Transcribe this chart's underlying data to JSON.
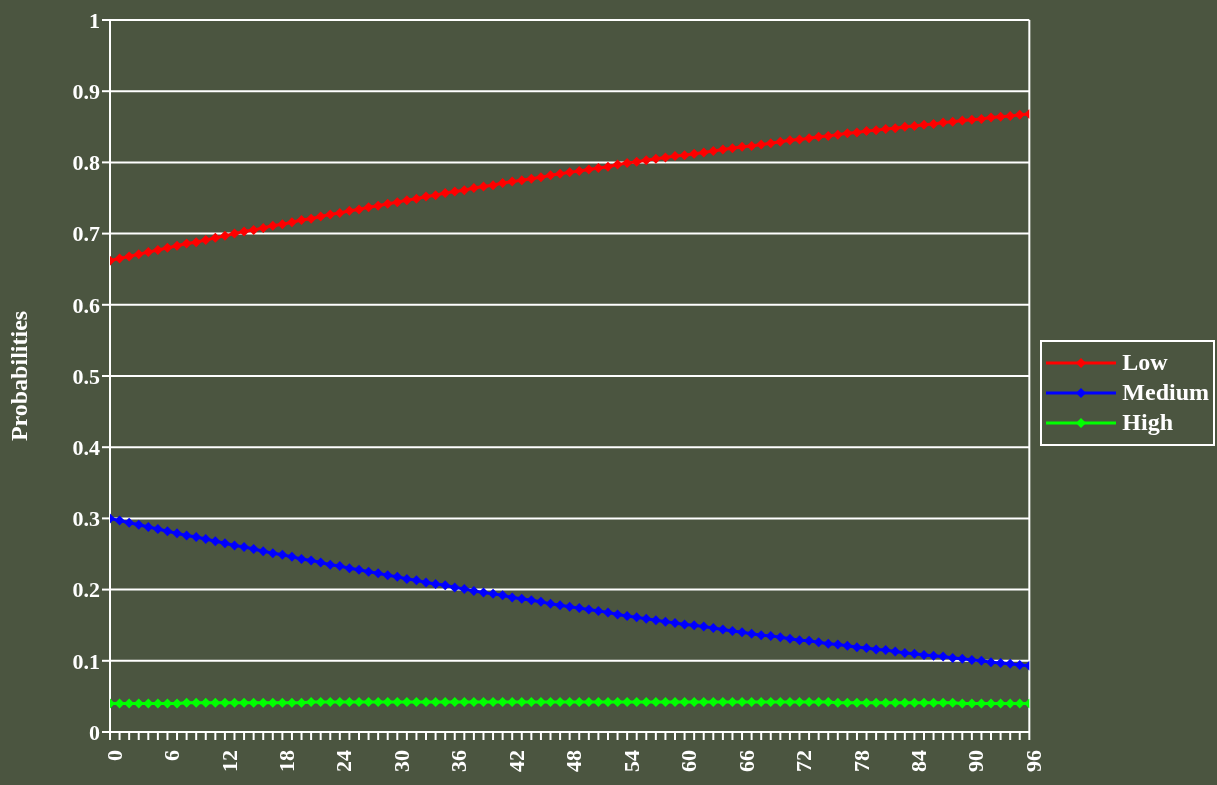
{
  "chart_data": {
    "type": "line",
    "ylabel": "Probabilities",
    "x": [
      0,
      1,
      2,
      3,
      4,
      5,
      6,
      7,
      8,
      9,
      10,
      11,
      12,
      13,
      14,
      15,
      16,
      17,
      18,
      19,
      20,
      21,
      22,
      23,
      24,
      25,
      26,
      27,
      28,
      29,
      30,
      31,
      32,
      33,
      34,
      35,
      36,
      37,
      38,
      39,
      40,
      41,
      42,
      43,
      44,
      45,
      46,
      47,
      48,
      49,
      50,
      51,
      52,
      53,
      54,
      55,
      56,
      57,
      58,
      59,
      60,
      61,
      62,
      63,
      64,
      65,
      66,
      67,
      68,
      69,
      70,
      71,
      72,
      73,
      74,
      75,
      76,
      77,
      78,
      79,
      80,
      81,
      82,
      83,
      84,
      85,
      86,
      87,
      88,
      89,
      90,
      91,
      92,
      93,
      94,
      95,
      96
    ],
    "xlim": [
      0,
      96
    ],
    "xticks": [
      0,
      {
        "value": 1,
        "label": null
      },
      {
        "value": 2,
        "label": null
      },
      {
        "value": 3,
        "label": null
      },
      {
        "value": 4,
        "label": null
      },
      {
        "value": 5,
        "label": null
      },
      6,
      {
        "value": 7,
        "label": null
      },
      {
        "value": 8,
        "label": null
      },
      {
        "value": 9,
        "label": null
      },
      {
        "value": 10,
        "label": null
      },
      {
        "value": 11,
        "label": null
      },
      12,
      {
        "value": 13,
        "label": null
      },
      {
        "value": 14,
        "label": null
      },
      {
        "value": 15,
        "label": null
      },
      {
        "value": 16,
        "label": null
      },
      {
        "value": 17,
        "label": null
      },
      18,
      {
        "value": 19,
        "label": null
      },
      {
        "value": 20,
        "label": null
      },
      {
        "value": 21,
        "label": null
      },
      {
        "value": 22,
        "label": null
      },
      {
        "value": 23,
        "label": null
      },
      24,
      {
        "value": 25,
        "label": null
      },
      {
        "value": 26,
        "label": null
      },
      {
        "value": 27,
        "label": null
      },
      {
        "value": 28,
        "label": null
      },
      {
        "value": 29,
        "label": null
      },
      30,
      {
        "value": 31,
        "label": null
      },
      {
        "value": 32,
        "label": null
      },
      {
        "value": 33,
        "label": null
      },
      {
        "value": 34,
        "label": null
      },
      {
        "value": 35,
        "label": null
      },
      36,
      {
        "value": 37,
        "label": null
      },
      {
        "value": 38,
        "label": null
      },
      {
        "value": 39,
        "label": null
      },
      {
        "value": 40,
        "label": null
      },
      {
        "value": 41,
        "label": null
      },
      42,
      {
        "value": 43,
        "label": null
      },
      {
        "value": 44,
        "label": null
      },
      {
        "value": 45,
        "label": null
      },
      {
        "value": 46,
        "label": null
      },
      {
        "value": 47,
        "label": null
      },
      48,
      {
        "value": 49,
        "label": null
      },
      {
        "value": 50,
        "label": null
      },
      {
        "value": 51,
        "label": null
      },
      {
        "value": 52,
        "label": null
      },
      {
        "value": 53,
        "label": null
      },
      54,
      {
        "value": 55,
        "label": null
      },
      {
        "value": 56,
        "label": null
      },
      {
        "value": 57,
        "label": null
      },
      {
        "value": 58,
        "label": null
      },
      {
        "value": 59,
        "label": null
      },
      60,
      {
        "value": 61,
        "label": null
      },
      {
        "value": 62,
        "label": null
      },
      {
        "value": 63,
        "label": null
      },
      {
        "value": 64,
        "label": null
      },
      {
        "value": 65,
        "label": null
      },
      66,
      {
        "value": 67,
        "label": null
      },
      {
        "value": 68,
        "label": null
      },
      {
        "value": 69,
        "label": null
      },
      {
        "value": 70,
        "label": null
      },
      {
        "value": 71,
        "label": null
      },
      72,
      {
        "value": 73,
        "label": null
      },
      {
        "value": 74,
        "label": null
      },
      {
        "value": 75,
        "label": null
      },
      {
        "value": 76,
        "label": null
      },
      {
        "value": 77,
        "label": null
      },
      78,
      {
        "value": 79,
        "label": null
      },
      {
        "value": 80,
        "label": null
      },
      {
        "value": 81,
        "label": null
      },
      {
        "value": 82,
        "label": null
      },
      {
        "value": 83,
        "label": null
      },
      84,
      {
        "value": 85,
        "label": null
      },
      {
        "value": 86,
        "label": null
      },
      {
        "value": 87,
        "label": null
      },
      {
        "value": 88,
        "label": null
      },
      {
        "value": 89,
        "label": null
      },
      90,
      {
        "value": 91,
        "label": null
      },
      {
        "value": 92,
        "label": null
      },
      {
        "value": 93,
        "label": null
      },
      {
        "value": 94,
        "label": null
      },
      {
        "value": 95,
        "label": null
      },
      96
    ],
    "series": [
      {
        "name": "Low",
        "color": "#ff0000",
        "values": [
          0.662,
          0.665,
          0.668,
          0.671,
          0.674,
          0.677,
          0.68,
          0.683,
          0.686,
          0.688,
          0.691,
          0.694,
          0.697,
          0.7,
          0.703,
          0.705,
          0.708,
          0.711,
          0.713,
          0.716,
          0.719,
          0.721,
          0.724,
          0.727,
          0.729,
          0.732,
          0.734,
          0.737,
          0.739,
          0.742,
          0.744,
          0.747,
          0.749,
          0.752,
          0.754,
          0.757,
          0.759,
          0.761,
          0.764,
          0.766,
          0.768,
          0.771,
          0.773,
          0.775,
          0.777,
          0.779,
          0.782,
          0.784,
          0.786,
          0.788,
          0.79,
          0.792,
          0.794,
          0.797,
          0.799,
          0.801,
          0.803,
          0.805,
          0.807,
          0.809,
          0.81,
          0.812,
          0.814,
          0.816,
          0.818,
          0.82,
          0.822,
          0.823,
          0.825,
          0.827,
          0.829,
          0.831,
          0.832,
          0.834,
          0.836,
          0.837,
          0.839,
          0.841,
          0.842,
          0.844,
          0.845,
          0.847,
          0.848,
          0.85,
          0.851,
          0.853,
          0.854,
          0.856,
          0.857,
          0.859,
          0.86,
          0.861,
          0.863,
          0.864,
          0.865,
          0.867,
          0.868
        ]
      },
      {
        "name": "Medium",
        "color": "#0000ff",
        "values": [
          0.3,
          0.297,
          0.294,
          0.291,
          0.288,
          0.285,
          0.282,
          0.279,
          0.276,
          0.274,
          0.271,
          0.268,
          0.265,
          0.262,
          0.26,
          0.257,
          0.254,
          0.251,
          0.249,
          0.246,
          0.243,
          0.241,
          0.238,
          0.235,
          0.233,
          0.23,
          0.228,
          0.225,
          0.223,
          0.22,
          0.218,
          0.215,
          0.213,
          0.21,
          0.208,
          0.206,
          0.203,
          0.201,
          0.198,
          0.196,
          0.194,
          0.192,
          0.189,
          0.187,
          0.185,
          0.183,
          0.18,
          0.178,
          0.176,
          0.174,
          0.172,
          0.17,
          0.168,
          0.165,
          0.163,
          0.161,
          0.159,
          0.157,
          0.155,
          0.153,
          0.151,
          0.15,
          0.148,
          0.146,
          0.144,
          0.142,
          0.14,
          0.138,
          0.136,
          0.135,
          0.133,
          0.131,
          0.129,
          0.128,
          0.126,
          0.124,
          0.123,
          0.121,
          0.119,
          0.118,
          0.116,
          0.115,
          0.113,
          0.111,
          0.11,
          0.108,
          0.107,
          0.106,
          0.104,
          0.103,
          0.101,
          0.1,
          0.098,
          0.097,
          0.096,
          0.094,
          0.093
        ]
      },
      {
        "name": "High",
        "color": "#00ff00",
        "values": [
          0.04,
          0.04,
          0.04,
          0.04,
          0.04,
          0.04,
          0.04,
          0.04,
          0.041,
          0.041,
          0.041,
          0.041,
          0.041,
          0.041,
          0.041,
          0.041,
          0.041,
          0.041,
          0.041,
          0.041,
          0.041,
          0.042,
          0.042,
          0.042,
          0.042,
          0.042,
          0.042,
          0.042,
          0.042,
          0.042,
          0.042,
          0.042,
          0.042,
          0.042,
          0.042,
          0.042,
          0.042,
          0.042,
          0.042,
          0.042,
          0.042,
          0.042,
          0.042,
          0.042,
          0.042,
          0.042,
          0.042,
          0.042,
          0.042,
          0.042,
          0.042,
          0.042,
          0.042,
          0.042,
          0.042,
          0.042,
          0.042,
          0.042,
          0.042,
          0.042,
          0.042,
          0.042,
          0.042,
          0.042,
          0.042,
          0.042,
          0.042,
          0.042,
          0.042,
          0.042,
          0.042,
          0.042,
          0.042,
          0.042,
          0.042,
          0.042,
          0.041,
          0.041,
          0.041,
          0.041,
          0.041,
          0.041,
          0.041,
          0.041,
          0.041,
          0.041,
          0.041,
          0.041,
          0.041,
          0.04,
          0.04,
          0.04,
          0.04,
          0.04,
          0.04,
          0.04,
          0.04
        ]
      }
    ],
    "ylim": [
      0,
      1
    ],
    "yticks": [
      0,
      0.1,
      0.2,
      0.3,
      0.4,
      0.5,
      0.6,
      0.7,
      0.8,
      0.9,
      1
    ],
    "grid": "y",
    "legend": "right",
    "marker": "diamond"
  }
}
